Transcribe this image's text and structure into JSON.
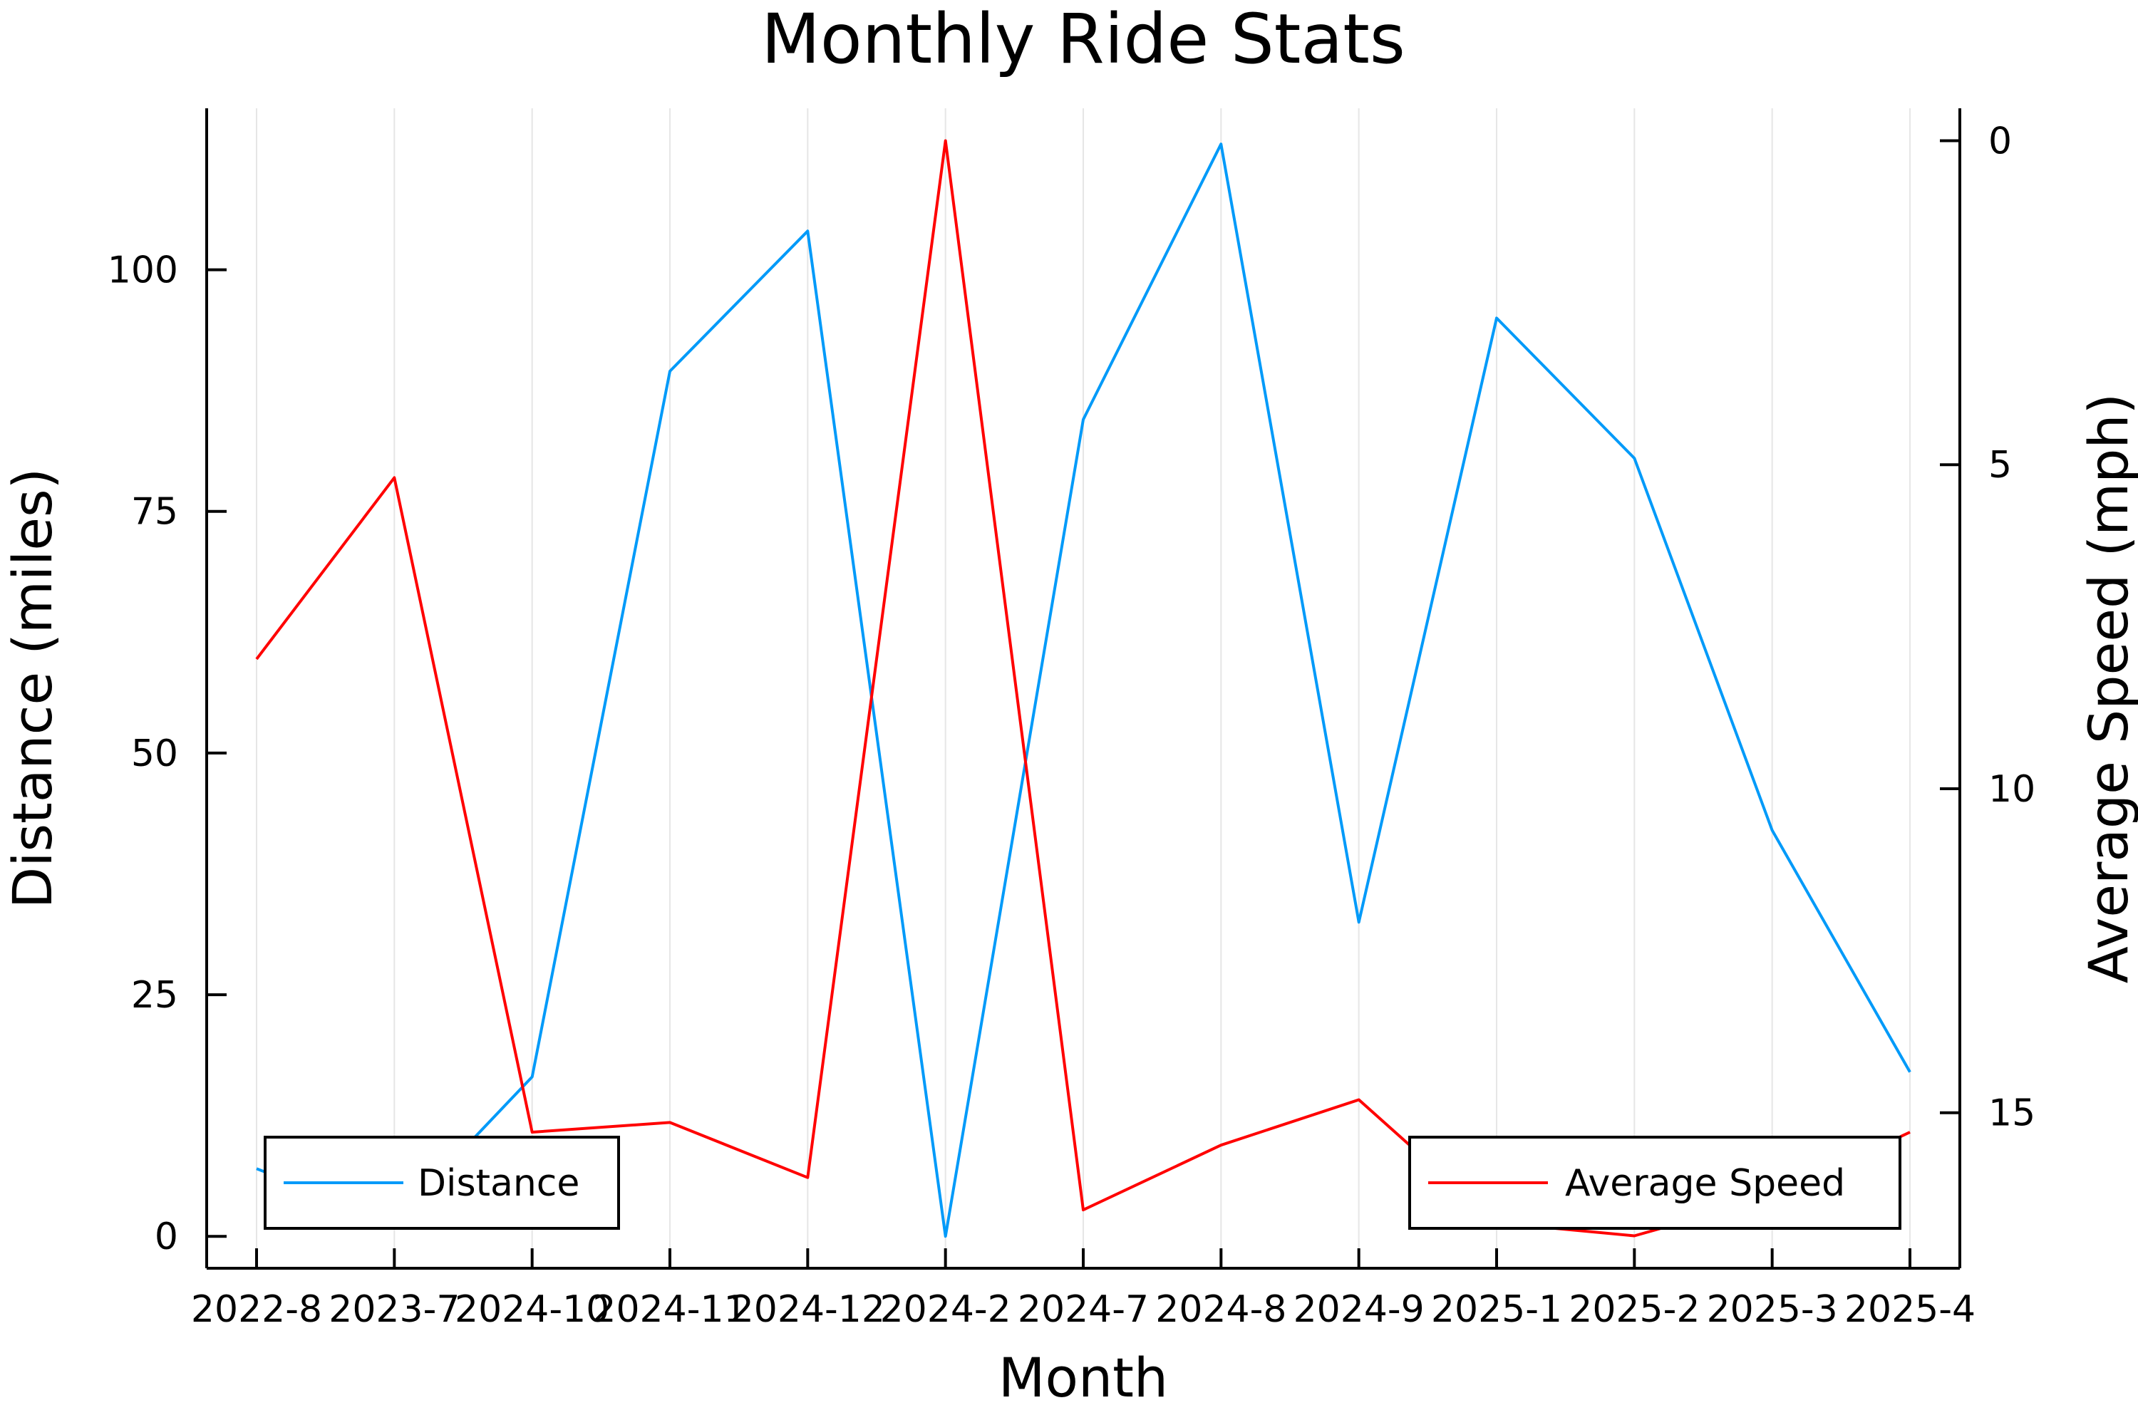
{
  "chart_data": {
    "type": "line",
    "title": "Monthly Ride Stats",
    "xlabel": "Month",
    "ylabel": "Distance (miles)",
    "y2label": "Average Speed (mph)",
    "categories": [
      "2022-8",
      "2023-7",
      "2024-10",
      "2024-11",
      "2024-12",
      "2024-2",
      "2024-7",
      "2024-8",
      "2024-9",
      "2025-1",
      "2025-2",
      "2025-3",
      "2025-4"
    ],
    "series": [
      {
        "name": "Distance",
        "axis": "left",
        "color": "#009af9",
        "values": [
          7,
          1.5,
          16.5,
          89.5,
          104,
          0,
          84.5,
          113,
          32.5,
          95,
          80.5,
          42,
          17
        ]
      },
      {
        "name": "Average Speed",
        "axis": "right",
        "color": "#ff0000",
        "values": [
          8,
          5.2,
          15.3,
          15.15,
          16,
          0,
          16.5,
          15.5,
          14.8,
          16.7,
          16.9,
          16.3,
          15.3
        ]
      }
    ],
    "ylim": [
      -3.3,
      116.7
    ],
    "yticks": [
      0,
      25,
      50,
      75,
      100
    ],
    "y2lim": [
      -0.5,
      17.4
    ],
    "y2ticks": [
      0,
      5,
      10,
      15
    ],
    "y2_inverted": true,
    "grid": "vertical",
    "legend": [
      {
        "series": "Distance",
        "placement": "bottom-left"
      },
      {
        "series": "Average Speed",
        "placement": "bottom-right"
      }
    ]
  }
}
